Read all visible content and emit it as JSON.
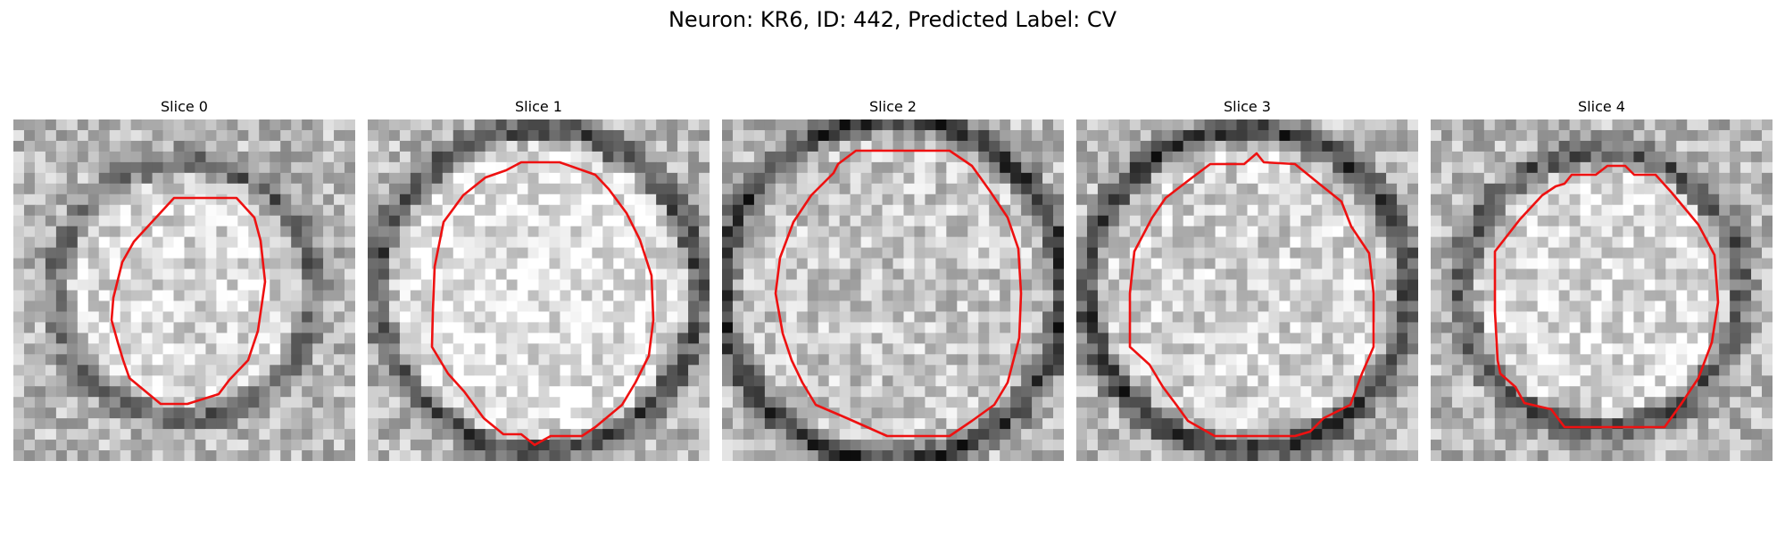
{
  "figure": {
    "title": "Neuron: KR6, ID: 442, Predicted Label: CV"
  },
  "colors": {
    "contour": "#ee1111",
    "background": "#ffffff"
  },
  "slices": [
    {
      "title": "Slice 0",
      "contour_color": "#ee1111",
      "center_brightness": 0.85,
      "ring_darkness": 0.45,
      "ring_radius": 12,
      "noise_seed": 11
    },
    {
      "title": "Slice 1",
      "contour_color": "#ee1111",
      "center_brightness": 0.9,
      "ring_darkness": 0.6,
      "ring_radius": 15,
      "noise_seed": 23
    },
    {
      "title": "Slice 2",
      "contour_color": "#ee1111",
      "center_brightness": 0.78,
      "ring_darkness": 0.75,
      "ring_radius": 16,
      "noise_seed": 37
    },
    {
      "title": "Slice 3",
      "contour_color": "#ee1111",
      "center_brightness": 0.82,
      "ring_darkness": 0.7,
      "ring_radius": 15,
      "noise_seed": 51
    },
    {
      "title": "Slice 4",
      "contour_color": "#ee1111",
      "center_brightness": 0.86,
      "ring_darkness": 0.55,
      "ring_radius": 13,
      "noise_seed": 67
    }
  ]
}
